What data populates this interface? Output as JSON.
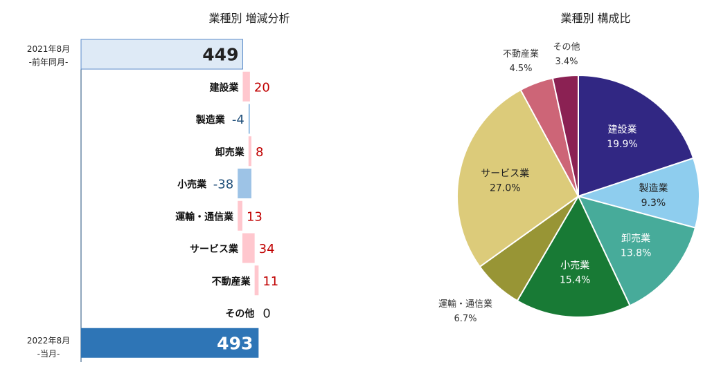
{
  "chart_data": [
    {
      "type": "bar",
      "title": "業種別  増減分析",
      "start": {
        "label_line1": "2021年8月",
        "label_line2": "-前年同月-",
        "value": 449
      },
      "end": {
        "label_line1": "2022年8月",
        "label_line2": "-当月-",
        "value": 493
      },
      "categories": [
        "建設業",
        "製造業",
        "卸売業",
        "小売業",
        "運輸・通信業",
        "サービス業",
        "不動産業",
        "その他"
      ],
      "values": [
        20,
        -4,
        8,
        -38,
        13,
        34,
        11,
        0
      ],
      "value_labels": [
        "20",
        "-4",
        "8",
        "-38",
        "13",
        "34",
        "11",
        "0"
      ],
      "colors": {
        "start": "#deeaf6",
        "end": "#2e75b6",
        "positive": "#ffc7ce",
        "negative": "#9dc3e6",
        "positive_text": "#c00000",
        "negative_text": "#1f4e79"
      }
    },
    {
      "type": "pie",
      "title": "業種別  構成比",
      "labels": [
        "建設業",
        "製造業",
        "卸売業",
        "小売業",
        "運輸・通信業",
        "サービス業",
        "不動産業",
        "その他"
      ],
      "values": [
        19.9,
        9.3,
        13.8,
        15.4,
        6.7,
        27.0,
        4.5,
        3.4
      ],
      "value_labels": [
        "19.9%",
        "9.3%",
        "13.8%",
        "15.4%",
        "6.7%",
        "27.0%",
        "4.5%",
        "3.4%"
      ],
      "colors": [
        "#312783",
        "#8ecdee",
        "#47ab9a",
        "#187a35",
        "#989535",
        "#dccb7a",
        "#cd6577",
        "#8b2153"
      ]
    }
  ]
}
